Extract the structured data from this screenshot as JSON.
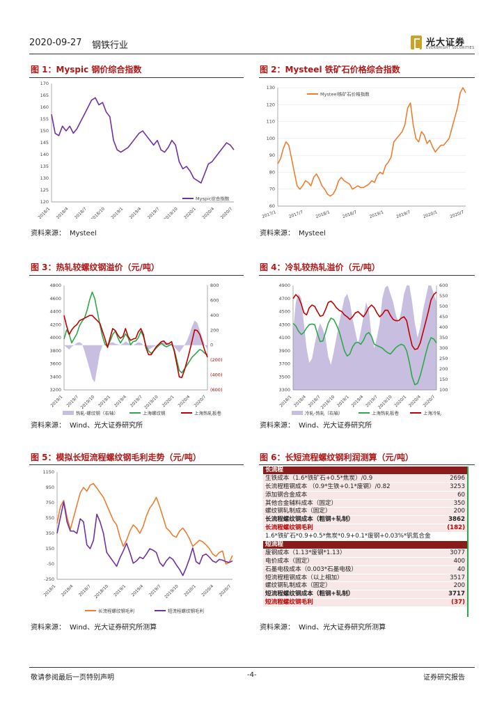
{
  "header": {
    "date": "2020-09-27",
    "industry": "钢铁行业",
    "logo_cn": "光大证券",
    "logo_en": "EVERBRIGHT SECURITIES"
  },
  "figures": {
    "f1": {
      "title": "图 1：Myspic 钢价综合指数",
      "source_label": "资料来源：",
      "source_value": "Mysteel"
    },
    "f2": {
      "title": "图 2：Mysteel 铁矿石价格综合指数",
      "source_label": "资料来源：",
      "source_value": "Mysteel"
    },
    "f3": {
      "title": "图 3：热轧较螺纹钢溢价（元/吨）",
      "source_label": "资料来源：",
      "source_value": "Wind、光大证券研究所"
    },
    "f4": {
      "title": "图 4：冷轧较热轧溢价（元/吨）",
      "source_label": "资料来源：",
      "source_value": "Wind、光大证券研究所"
    },
    "f5": {
      "title": "图 5：模拟长短流程螺纹钢毛利走势（元/吨）",
      "source_label": "资料来源：",
      "source_value": "Wind、光大证券研究所测算"
    },
    "f6": {
      "title": "图 6：长短流程螺纹钢利润测算（元/吨）",
      "source_label": "资料来源：",
      "source_value": "Wind、光大证券研究所测算"
    }
  },
  "table": {
    "rows": [
      {
        "label": "长流程",
        "value": "",
        "style": "sec"
      },
      {
        "label": "生铁成本（1.6*铁矿石+0.5*焦炭）/0.9",
        "value": "2696",
        "style": "pl"
      },
      {
        "label": "长流程粗钢成本 （0.9*生铁+0.1*废钢）/0.82",
        "value": "3253",
        "style": "pl"
      },
      {
        "label": "添加钢合金成本",
        "value": "60",
        "style": "pl"
      },
      {
        "label": "其他合金辅料成本（固定）",
        "value": "350",
        "style": "pl"
      },
      {
        "label": "螺纹钢轧制成本（固定）",
        "value": "200",
        "style": "pl"
      },
      {
        "label": "长流程螺纹钢成本（粗钢+轧制）",
        "value": "3862",
        "style": "pl bold"
      },
      {
        "label": "长流程螺纹钢毛利",
        "value": "(182)",
        "style": "pl bold neg"
      },
      {
        "label": "1.6*铁矿石*0.9+0.5*焦炭*0.9+0.1*废钢+0.03%*钒氮合金",
        "value": "",
        "style": "wh"
      },
      {
        "label": "短流程",
        "value": "",
        "style": "sec"
      },
      {
        "label": "废钢成本（1.13*废钢*1.13）",
        "value": "3077",
        "style": "pl"
      },
      {
        "label": "电价成本（固定）",
        "value": "400",
        "style": "pl"
      },
      {
        "label": "石墨电极成本（0.003*石墨电极）",
        "value": "40",
        "style": "pl"
      },
      {
        "label": "短流程粗钢成本（以上相加）",
        "value": "3517",
        "style": "pl"
      },
      {
        "label": "螺纹钢轧制成本（固定）",
        "value": "200",
        "style": "pl"
      },
      {
        "label": "短流程螺纹钢成本（粗钢+轧制）",
        "value": "3717",
        "style": "pl bold"
      },
      {
        "label": "短流程螺纹钢毛利",
        "value": "(37)",
        "style": "pl bold neg"
      }
    ]
  },
  "footer": {
    "left": "敬请参阅最后一页特别声明",
    "center": "-4-",
    "right": "证券研究报告"
  },
  "colors": {
    "title_red": "#b01818",
    "purple": "#7030a0",
    "orange": "#ed7d31",
    "green": "#2ba84a",
    "dark_red": "#c00000",
    "lavender": "#c8bfe0"
  },
  "chart_data": [
    {
      "id": "c1",
      "type": "line",
      "x_ticks": [
        "2018/1",
        "2018/4",
        "2018/7",
        "2018/10",
        "2019/1",
        "2019/4",
        "2019/7",
        "2019/10",
        "2020/1",
        "2020/4",
        "2020/7"
      ],
      "y_ticks": [
        120,
        125,
        130,
        135,
        140,
        145,
        150,
        155,
        160,
        165,
        170
      ],
      "ylim": [
        120,
        170
      ],
      "series": [
        {
          "name": "Myspic综合指数",
          "color": "#7030a0",
          "values": [
            157,
            149,
            148,
            152,
            150,
            152,
            149,
            151,
            154,
            157,
            160,
            163,
            164,
            161,
            162,
            158,
            156,
            146,
            142,
            141,
            142,
            143,
            145,
            147,
            149,
            150,
            148,
            146,
            144,
            146,
            142,
            141,
            143,
            146,
            144,
            137,
            134,
            135,
            133,
            130,
            129,
            128,
            132,
            136,
            137,
            139,
            141,
            143,
            145,
            144,
            142
          ]
        }
      ],
      "legend": "bottom-right"
    },
    {
      "id": "c2",
      "type": "line",
      "x_ticks": [
        "2017/1",
        "2017/7",
        "2018/1",
        "2018/7",
        "2019/1",
        "2019/7",
        "2020/1",
        "2020/7"
      ],
      "y_ticks": [
        60,
        70,
        80,
        90,
        100,
        110,
        120,
        130
      ],
      "ylim": [
        60,
        130
      ],
      "series": [
        {
          "name": "Mysteel铁矿石价格指数",
          "color": "#ed7d31",
          "values": [
            85,
            88,
            94,
            98,
            96,
            88,
            80,
            72,
            70,
            72,
            75,
            74,
            72,
            77,
            79,
            76,
            72,
            70,
            67,
            66,
            67,
            70,
            75,
            77,
            75,
            74,
            73,
            70,
            71,
            72,
            71,
            71,
            72,
            73,
            75,
            74,
            78,
            80,
            79,
            84,
            86,
            89,
            98,
            100,
            102,
            104,
            108,
            118,
            121,
            108,
            100,
            98,
            104,
            102,
            97,
            99,
            95,
            92,
            94,
            96,
            96,
            98,
            100,
            106,
            112,
            118,
            127,
            130,
            127
          ]
        }
      ],
      "legend": "top-left"
    },
    {
      "id": "c3",
      "type": "line+area",
      "x_ticks": [
        "2019/1",
        "2019/7",
        "2019/10",
        "2019/1",
        "2019/4",
        "2019/7",
        "2019/10",
        "2020/1",
        "2020/4",
        "2020/7"
      ],
      "y_left_ticks": [
        3200,
        3400,
        3600,
        3800,
        4000,
        4200,
        4400,
        4600,
        4800
      ],
      "y_right_ticks": [
        800,
        600,
        400,
        200,
        0,
        "(200)",
        "(400)",
        "(600)"
      ],
      "ylim_left": [
        3200,
        4800
      ],
      "ylim_right": [
        -600,
        800
      ],
      "series": [
        {
          "name": "热轧-螺纹钢（右轴）",
          "axis": "right",
          "type": "area",
          "color": "#c8bfe0",
          "values": [
            0,
            -30,
            -60,
            -20,
            0,
            30,
            40,
            20,
            -80,
            -200,
            -320,
            -450,
            -500,
            -300,
            -100,
            0,
            10,
            20,
            30,
            40,
            20,
            10,
            0,
            20,
            50,
            30,
            10,
            0,
            20,
            40,
            30,
            0,
            -30,
            -60,
            -40,
            -20,
            0,
            20,
            30,
            50,
            40,
            20,
            10,
            -20,
            -60,
            -100,
            -50,
            0,
            60,
            150,
            250,
            330,
            300,
            200,
            100,
            0,
            -50
          ]
        },
        {
          "name": "上海螺纹钢",
          "axis": "left",
          "type": "line",
          "color": "#2ba84a",
          "values": [
            3980,
            4120,
            4050,
            3920,
            3990,
            4060,
            4180,
            4250,
            4300,
            4420,
            4580,
            4700,
            4600,
            4400,
            4200,
            4020,
            3900,
            3860,
            3950,
            4050,
            4100,
            4000,
            3920,
            3980,
            4060,
            4000,
            3890,
            3940,
            3950,
            4000,
            4100,
            4020,
            3880,
            3800,
            3760,
            3800,
            3840,
            3880,
            3920,
            3880,
            3860,
            3880,
            3900,
            3820,
            3660,
            3500,
            3460,
            3520,
            3580,
            3640,
            3700,
            3740,
            3780,
            3820,
            3800,
            3760,
            3740
          ]
        },
        {
          "name": "上海热轧板卷",
          "axis": "left",
          "type": "line",
          "color": "#c00000",
          "values": [
            4340,
            4180,
            4050,
            4120,
            4170,
            4200,
            4260,
            4280,
            4300,
            4320,
            4340,
            4340,
            4300,
            4260,
            4220,
            4100,
            3980,
            3850,
            4000,
            4140,
            4110,
            4040,
            3990,
            4020,
            4140,
            4020,
            3960,
            3980,
            3990,
            4090,
            4140,
            4050,
            3850,
            3740,
            3740,
            3800,
            3860,
            3900,
            3940,
            3950,
            3900,
            3910,
            3940,
            3800,
            3600,
            3400,
            3390,
            3500,
            3640,
            3790,
            3950,
            4120,
            4110,
            4050,
            3930,
            3800,
            3700
          ]
        }
      ]
    },
    {
      "id": "c4",
      "type": "line+area",
      "x_ticks": [
        "2018/1",
        "2018/4",
        "2018/7",
        "2018/10",
        "2019/1",
        "2019/4",
        "2019/7",
        "2019/10",
        "2020/1",
        "2020/4",
        "2020/7"
      ],
      "y_left_ticks": [
        3300,
        3500,
        3700,
        3900,
        4100,
        4300,
        4500,
        4700,
        4900
      ],
      "y_right_ticks": [
        100,
        150,
        200,
        250,
        300,
        350,
        400,
        450,
        500,
        550,
        600
      ],
      "ylim_left": [
        3300,
        4900
      ],
      "ylim_right": [
        100,
        600
      ],
      "series": [
        {
          "name": "冷轧-热轧（右轴）",
          "axis": "right",
          "type": "area",
          "color": "#c8bfe0",
          "values": [
            380,
            520,
            560,
            540,
            420,
            300,
            230,
            250,
            320,
            380,
            420,
            390,
            350,
            260,
            220,
            280,
            350,
            420,
            480,
            540,
            560,
            520,
            440,
            380,
            320,
            380,
            450,
            520,
            480,
            360,
            300,
            350,
            420,
            540,
            590,
            600,
            560,
            520,
            460,
            420,
            480,
            560,
            600,
            600,
            520,
            420,
            350,
            400,
            480,
            540,
            600,
            600,
            560,
            520
          ]
        },
        {
          "name": "上海热轧板卷",
          "axis": "left",
          "type": "line",
          "color": "#2ba84a",
          "values": [
            4320,
            4280,
            4200,
            4150,
            4180,
            4250,
            4300,
            4310,
            4300,
            4160,
            4040,
            4050,
            4180,
            4320,
            4400,
            4380,
            4300,
            4200,
            4050,
            3900,
            3820,
            3850,
            3960,
            4020,
            4030,
            4000,
            4060,
            4150,
            4180,
            4120,
            4000,
            3980,
            3960,
            3940,
            3900,
            3870,
            3850,
            3900,
            3950,
            3980,
            4000,
            3980,
            3900,
            3720,
            3500,
            3380,
            3400,
            3520,
            3680,
            3850,
            4000,
            4100,
            4080,
            4020
          ]
        },
        {
          "name": "上海冷轧",
          "axis": "left",
          "type": "line",
          "color": "#c00000",
          "values": [
            4700,
            4760,
            4720,
            4620,
            4480,
            4450,
            4560,
            4600,
            4580,
            4500,
            4430,
            4440,
            4530,
            4640,
            4660,
            4620,
            4560,
            4520,
            4500,
            4450,
            4420,
            4380,
            4420,
            4480,
            4500,
            4460,
            4420,
            4480,
            4560,
            4600,
            4560,
            4480,
            4420,
            4460,
            4520,
            4520,
            4440,
            4380,
            4360,
            4360,
            4400,
            4420,
            4360,
            4160,
            3980,
            3920,
            3930,
            4020,
            4180,
            4340,
            4500,
            4680,
            4760,
            4800
          ]
        }
      ]
    },
    {
      "id": "c5",
      "type": "line",
      "x_ticks": [
        "2018/1",
        "2018/4",
        "2018/7",
        "2018/10",
        "2019/1",
        "2019/4",
        "2019/7",
        "2019/10",
        "2020/1",
        "2020/4",
        "2020/7"
      ],
      "y_ticks": [
        -250,
        -50,
        150,
        350,
        550,
        750,
        950,
        1150
      ],
      "ylim": [
        -250,
        1150
      ],
      "series": [
        {
          "name": "长流程螺纹钢毛利",
          "color": "#ed7d31",
          "values": [
            480,
            700,
            780,
            560,
            400,
            560,
            720,
            880,
            950,
            900,
            980,
            1000,
            940,
            880,
            820,
            720,
            620,
            520,
            460,
            300,
            180,
            260,
            380,
            460,
            420,
            350,
            440,
            580,
            680,
            740,
            820,
            700,
            560,
            420,
            380,
            320,
            300,
            380,
            420,
            360,
            280,
            180,
            220,
            260,
            240,
            200,
            150,
            80,
            50,
            100,
            120,
            -50,
            -30,
            60
          ]
        },
        {
          "name": "短流程螺纹钢毛利",
          "color": "#7030a0",
          "values": [
            350,
            560,
            760,
            500,
            380,
            380,
            350,
            540,
            500,
            200,
            150,
            260,
            600,
            500,
            350,
            100,
            40,
            -20,
            -80,
            30,
            120,
            220,
            100,
            -40,
            -10,
            40,
            20,
            80,
            150,
            130,
            100,
            -30,
            -80,
            -10,
            40,
            10,
            -60,
            -120,
            -200,
            -100,
            20,
            160,
            -20,
            -50,
            60,
            80,
            40,
            -10,
            -30,
            10,
            0,
            -20,
            -30,
            -10
          ]
        }
      ]
    }
  ]
}
